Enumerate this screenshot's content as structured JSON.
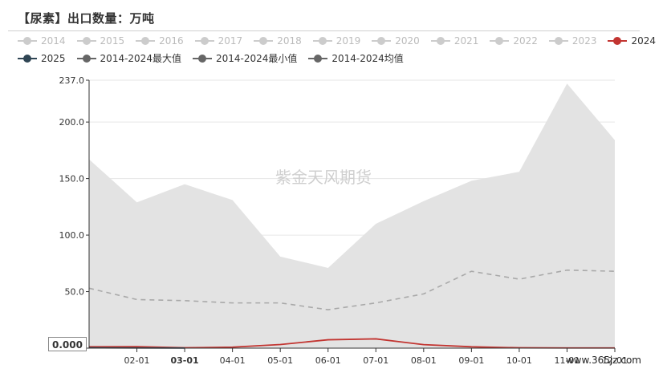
{
  "page_title": "【尿素】出口数量：万吨",
  "watermark": "紫金天风期货",
  "source": "www.365jz.com",
  "axis_pointer": {
    "y_value": "0.000",
    "x_label": "03-01"
  },
  "legend": [
    {
      "name": "2014",
      "color": "#cccccc",
      "shape": "circle"
    },
    {
      "name": "2015",
      "color": "#cccccc",
      "shape": "circle"
    },
    {
      "name": "2016",
      "color": "#cccccc",
      "shape": "circle"
    },
    {
      "name": "2017",
      "color": "#cccccc",
      "shape": "circle"
    },
    {
      "name": "2018",
      "color": "#cccccc",
      "shape": "circle"
    },
    {
      "name": "2019",
      "color": "#cccccc",
      "shape": "circle"
    },
    {
      "name": "2020",
      "color": "#cccccc",
      "shape": "circle"
    },
    {
      "name": "2021",
      "color": "#cccccc",
      "shape": "circle"
    },
    {
      "name": "2022",
      "color": "#cccccc",
      "shape": "circle"
    },
    {
      "name": "2023",
      "color": "#cccccc",
      "shape": "circle"
    },
    {
      "name": "2024",
      "color": "#c23531",
      "shape": "circle"
    },
    {
      "name": "2025",
      "color": "#2f4554",
      "shape": "circle"
    },
    {
      "name": "2014-2024最大值",
      "color": "#666666",
      "shape": "circle"
    },
    {
      "name": "2014-2024最小值",
      "color": "#666666",
      "shape": "circle"
    },
    {
      "name": "2014-2024均值",
      "color": "#666666",
      "shape": "circle"
    }
  ],
  "chart_data": {
    "type": "line",
    "title": "【尿素】出口数量：万吨",
    "xlabel": "",
    "ylabel": "",
    "ylim": [
      0,
      237
    ],
    "y_ticks": [
      "0.000",
      "50.0",
      "100.0",
      "150.0",
      "200.0",
      "237.0"
    ],
    "y_tick_values": [
      0,
      50,
      100,
      150,
      200,
      237
    ],
    "x_ticks": [
      "02-01",
      "03-01",
      "04-01",
      "05-01",
      "06-01",
      "07-01",
      "08-01",
      "09-01",
      "10-01",
      "11-01",
      "12-01"
    ],
    "x_range": [
      1,
      12
    ],
    "grid": true,
    "legend_position": "top-left",
    "series": [
      {
        "name": "2014-2024最大值",
        "style": "area",
        "color": "#e3e3e3",
        "x": [
          1,
          2,
          3,
          4,
          5,
          6,
          7,
          8,
          9,
          10,
          11,
          12
        ],
        "values": [
          167,
          129,
          145,
          131,
          81,
          71,
          110,
          130,
          148,
          156,
          234,
          184
        ]
      },
      {
        "name": "2014-2024最小值",
        "style": "area-min",
        "color": "#ffffff",
        "x": [
          1,
          2,
          3,
          4,
          5,
          6,
          7,
          8,
          9,
          10,
          11,
          12
        ],
        "values": [
          0,
          0,
          0,
          0,
          0,
          0,
          0,
          0,
          0,
          0,
          0,
          0
        ]
      },
      {
        "name": "2014-2024均值",
        "style": "dashed",
        "color": "#a9a9a9",
        "x": [
          1,
          2,
          3,
          4,
          5,
          6,
          7,
          8,
          9,
          10,
          11,
          12
        ],
        "values": [
          53,
          43,
          42,
          40,
          40,
          34,
          40,
          48,
          68,
          61,
          69,
          68
        ]
      },
      {
        "name": "2024",
        "style": "line",
        "color": "#c23531",
        "x": [
          1,
          2,
          3,
          4,
          5,
          6,
          7,
          8,
          9,
          10,
          11,
          12
        ],
        "values": [
          1.2,
          1.3,
          0.3,
          0.9,
          3.2,
          7.4,
          8.2,
          3.1,
          1.2,
          0.3,
          0.2,
          0.2
        ]
      },
      {
        "name": "2025",
        "style": "line",
        "color": "#2f4554",
        "x": [
          1,
          2,
          3
        ],
        "values": [
          0.3,
          0.2,
          0.1
        ]
      }
    ]
  }
}
